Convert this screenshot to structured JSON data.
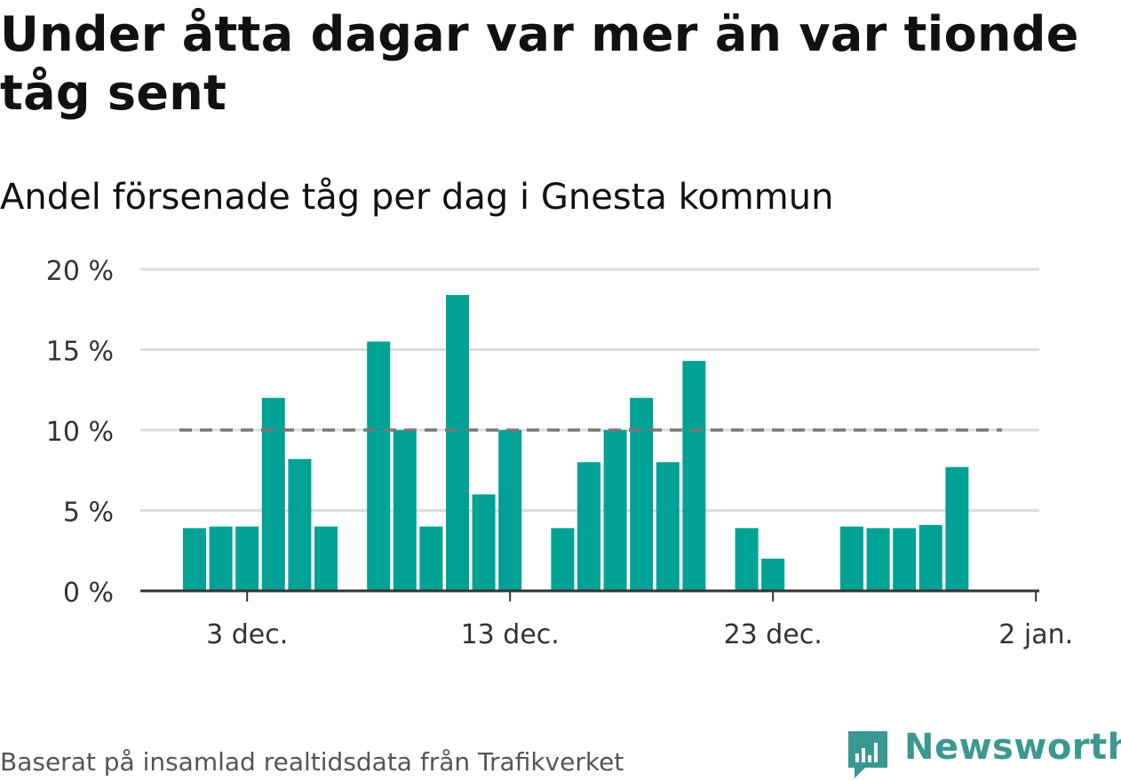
{
  "title": "Under åtta dagar var mer än var tionde tåg sent",
  "subtitle": "Andel försenade tåg per dag i Gnesta kommun",
  "source": "Baserat på insamlad realtidsdata från Trafikverket",
  "brand": {
    "name": "Newsworthy",
    "logo_icon": "newsworthy-logo-icon",
    "color": "#3a9890"
  },
  "colors": {
    "bar": "#00a295",
    "threshold": "#777777",
    "grid": "#dddddd",
    "axis": "#333333"
  },
  "chart_data": {
    "type": "bar",
    "title": "Under åtta dagar var mer än var tionde tåg sent",
    "subtitle": "Andel försenade tåg per dag i Gnesta kommun",
    "ylim": [
      0,
      20
    ],
    "yticks": [
      0,
      5,
      10,
      15,
      20
    ],
    "ytick_labels": [
      "0 %",
      "5 %",
      "10 %",
      "15 %",
      "20 %"
    ],
    "xticks": [
      {
        "day": 3,
        "label": "3 dec."
      },
      {
        "day": 13,
        "label": "13 dec."
      },
      {
        "day": 23,
        "label": "23 dec."
      },
      {
        "day": 33,
        "label": "2 jan."
      }
    ],
    "threshold": {
      "value": 10,
      "style": "dashed"
    },
    "grid": true,
    "x": [
      "2019-12-01",
      "2019-12-02",
      "2019-12-03",
      "2019-12-04",
      "2019-12-05",
      "2019-12-06",
      "2019-12-07",
      "2019-12-08",
      "2019-12-09",
      "2019-12-10",
      "2019-12-11",
      "2019-12-12",
      "2019-12-13",
      "2019-12-14",
      "2019-12-15",
      "2019-12-16",
      "2019-12-17",
      "2019-12-18",
      "2019-12-19",
      "2019-12-20",
      "2019-12-21",
      "2019-12-22",
      "2019-12-23",
      "2019-12-24",
      "2019-12-25",
      "2019-12-26",
      "2019-12-27",
      "2019-12-28",
      "2019-12-29",
      "2019-12-30",
      "2019-12-31"
    ],
    "values": [
      3.9,
      4.0,
      4.0,
      12.0,
      8.2,
      4.0,
      null,
      15.5,
      10.0,
      4.0,
      18.4,
      6.0,
      10.0,
      null,
      3.9,
      8.0,
      10.0,
      12.0,
      8.0,
      14.3,
      null,
      3.9,
      2.0,
      null,
      null,
      4.0,
      3.9,
      3.9,
      4.1,
      7.7,
      null
    ]
  }
}
